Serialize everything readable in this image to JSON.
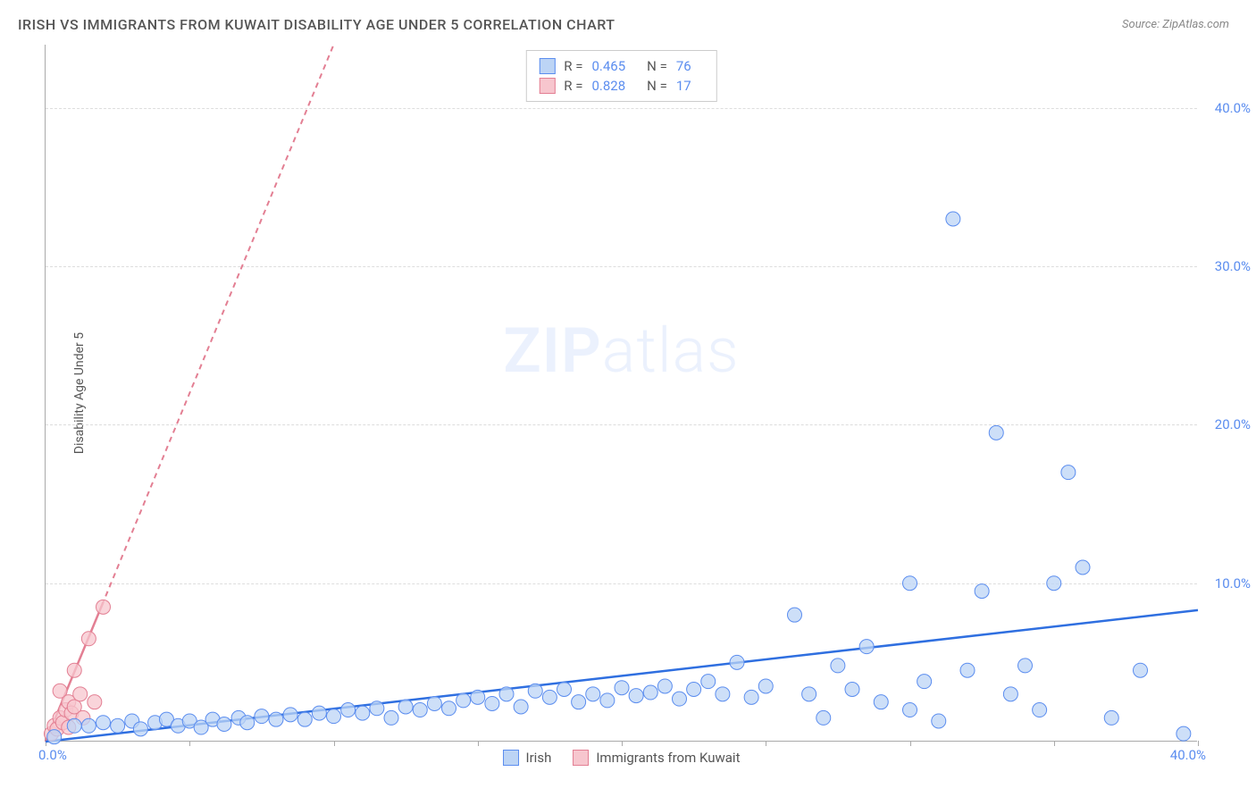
{
  "title": "IRISH VS IMMIGRANTS FROM KUWAIT DISABILITY AGE UNDER 5 CORRELATION CHART",
  "source": "Source: ZipAtlas.com",
  "y_axis_title": "Disability Age Under 5",
  "watermark_bold": "ZIP",
  "watermark_light": "atlas",
  "chart": {
    "type": "scatter",
    "xlim": [
      0,
      40
    ],
    "ylim": [
      0,
      44
    ],
    "y_ticks": [
      10,
      20,
      30,
      40
    ],
    "y_tick_labels": [
      "10.0%",
      "20.0%",
      "30.0%",
      "40.0%"
    ],
    "x_ticks": [
      0,
      5,
      10,
      15,
      20,
      25,
      30,
      35,
      40
    ],
    "x_origin_label": "0.0%",
    "x_end_label": "40.0%",
    "grid_color": "#dddddd",
    "axis_color": "#aaaaaa",
    "background_color": "#ffffff",
    "series": [
      {
        "name": "Irish",
        "marker_fill": "#bcd4f5",
        "marker_stroke": "#5b8def",
        "marker_radius": 8,
        "line_color": "#2f6fe0",
        "line_width": 2.5,
        "line_dash": "none",
        "r_value": "0.465",
        "n_value": "76",
        "regression": {
          "x1": 0,
          "y1": 0,
          "x2": 40,
          "y2": 8.3
        },
        "points": [
          [
            0.3,
            0.3
          ],
          [
            1.0,
            1.0
          ],
          [
            1.5,
            1.0
          ],
          [
            2.0,
            1.2
          ],
          [
            2.5,
            1.0
          ],
          [
            3.0,
            1.3
          ],
          [
            3.3,
            0.8
          ],
          [
            3.8,
            1.2
          ],
          [
            4.2,
            1.4
          ],
          [
            4.6,
            1.0
          ],
          [
            5.0,
            1.3
          ],
          [
            5.4,
            0.9
          ],
          [
            5.8,
            1.4
          ],
          [
            6.2,
            1.1
          ],
          [
            6.7,
            1.5
          ],
          [
            7.0,
            1.2
          ],
          [
            7.5,
            1.6
          ],
          [
            8.0,
            1.4
          ],
          [
            8.5,
            1.7
          ],
          [
            9.0,
            1.4
          ],
          [
            9.5,
            1.8
          ],
          [
            10.0,
            1.6
          ],
          [
            10.5,
            2.0
          ],
          [
            11.0,
            1.8
          ],
          [
            11.5,
            2.1
          ],
          [
            12.0,
            1.5
          ],
          [
            12.5,
            2.2
          ],
          [
            13.0,
            2.0
          ],
          [
            13.5,
            2.4
          ],
          [
            14.0,
            2.1
          ],
          [
            14.5,
            2.6
          ],
          [
            15.0,
            2.8
          ],
          [
            15.5,
            2.4
          ],
          [
            16.0,
            3.0
          ],
          [
            16.5,
            2.2
          ],
          [
            17.0,
            3.2
          ],
          [
            17.5,
            2.8
          ],
          [
            18.0,
            3.3
          ],
          [
            18.5,
            2.5
          ],
          [
            19.0,
            3.0
          ],
          [
            19.5,
            2.6
          ],
          [
            20.0,
            3.4
          ],
          [
            20.5,
            2.9
          ],
          [
            21.0,
            3.1
          ],
          [
            21.5,
            3.5
          ],
          [
            22.0,
            2.7
          ],
          [
            22.5,
            3.3
          ],
          [
            23.0,
            3.8
          ],
          [
            23.5,
            3.0
          ],
          [
            24.0,
            5.0
          ],
          [
            24.5,
            2.8
          ],
          [
            25.0,
            3.5
          ],
          [
            26.0,
            8.0
          ],
          [
            26.5,
            3.0
          ],
          [
            27.0,
            1.5
          ],
          [
            27.5,
            4.8
          ],
          [
            28.0,
            3.3
          ],
          [
            28.5,
            6.0
          ],
          [
            29.0,
            2.5
          ],
          [
            30.0,
            2.0
          ],
          [
            30.0,
            10.0
          ],
          [
            30.5,
            3.8
          ],
          [
            31.0,
            1.3
          ],
          [
            31.5,
            33.0
          ],
          [
            32.0,
            4.5
          ],
          [
            32.5,
            9.5
          ],
          [
            33.0,
            19.5
          ],
          [
            33.5,
            3.0
          ],
          [
            34.0,
            4.8
          ],
          [
            34.5,
            2.0
          ],
          [
            35.0,
            10.0
          ],
          [
            35.5,
            17.0
          ],
          [
            36.0,
            11.0
          ],
          [
            37.0,
            1.5
          ],
          [
            38.0,
            4.5
          ],
          [
            39.5,
            0.5
          ]
        ]
      },
      {
        "name": "Immigrants from Kuwait",
        "marker_fill": "#f7c6ce",
        "marker_stroke": "#e37f93",
        "marker_radius": 8,
        "line_color": "#e37f93",
        "line_width": 2,
        "line_dash": "6,5",
        "r_value": "0.828",
        "n_value": "17",
        "regression": {
          "x1": 0,
          "y1": 0,
          "x2": 10,
          "y2": 44
        },
        "solid_segment": {
          "x1": 0,
          "y1": 0,
          "x2": 2.0,
          "y2": 8.8
        },
        "points": [
          [
            0.2,
            0.5
          ],
          [
            0.3,
            1.0
          ],
          [
            0.4,
            0.8
          ],
          [
            0.5,
            1.5
          ],
          [
            0.5,
            3.2
          ],
          [
            0.6,
            1.2
          ],
          [
            0.7,
            2.0
          ],
          [
            0.8,
            2.5
          ],
          [
            0.8,
            0.9
          ],
          [
            0.9,
            1.8
          ],
          [
            1.0,
            2.2
          ],
          [
            1.0,
            4.5
          ],
          [
            1.2,
            3.0
          ],
          [
            1.3,
            1.5
          ],
          [
            1.5,
            6.5
          ],
          [
            1.7,
            2.5
          ],
          [
            2.0,
            8.5
          ]
        ]
      }
    ]
  },
  "legend_top": {
    "r_label": "R =",
    "n_label": "N ="
  },
  "legend_bottom": {
    "label1": "Irish",
    "label2": "Immigrants from Kuwait"
  }
}
